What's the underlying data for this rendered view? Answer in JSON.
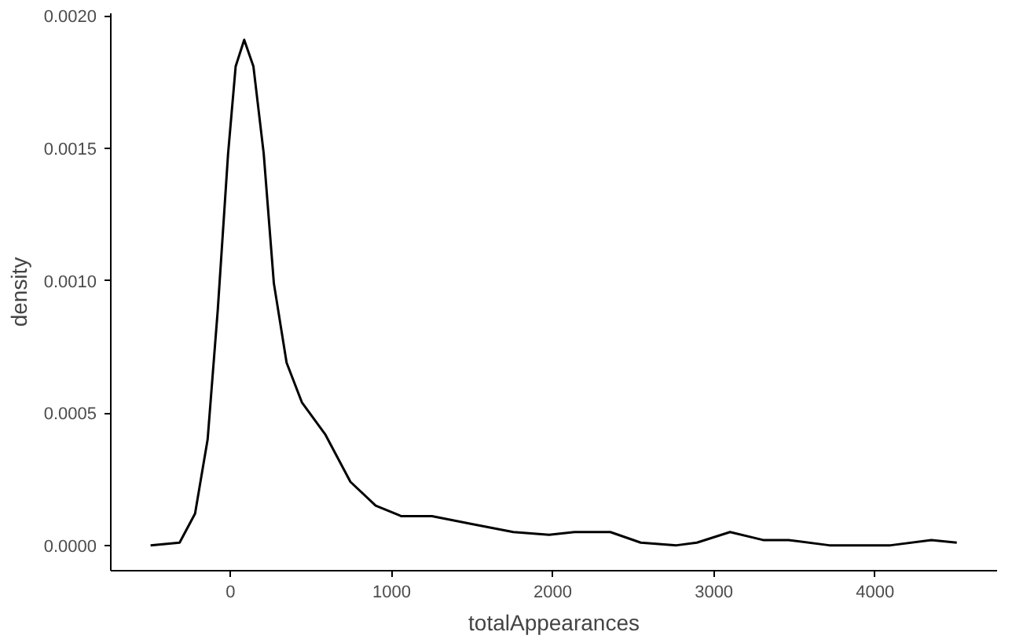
{
  "chart_data": {
    "type": "line",
    "xlabel": "totalAppearances",
    "ylabel": "density",
    "color": "#000000",
    "x": [
      -496,
      -316,
      -220,
      -142,
      -79,
      -15,
      32,
      85,
      142,
      206,
      269,
      348,
      443,
      587,
      744,
      901,
      1060,
      1250,
      1503,
      1755,
      1977,
      2135,
      2357,
      2546,
      2768,
      2894,
      3100,
      3305,
      3463,
      3716,
      4096,
      4349,
      4507
    ],
    "values": [
      0,
      1e-05,
      0.00012,
      0.0004,
      0.00089,
      0.00148,
      0.00181,
      0.00191,
      0.00181,
      0.00148,
      0.00099,
      0.00069,
      0.00054,
      0.00042,
      0.00024,
      0.00015,
      0.00011,
      0.00011,
      8e-05,
      5e-05,
      4e-05,
      5e-05,
      5e-05,
      1e-05,
      0,
      1e-05,
      5e-05,
      2e-05,
      2e-05,
      0,
      0,
      2e-05,
      1e-05
    ],
    "xlim": [
      -743,
      4757
    ],
    "ylim": [
      -9.6e-05,
      0.00201
    ],
    "xticks": [
      0,
      1000,
      2000,
      3000,
      4000
    ],
    "yticks": [
      {
        "value": 0,
        "label": "0.0000"
      },
      {
        "value": 0.0005,
        "label": "0.0005"
      },
      {
        "value": 0.001,
        "label": "0.0010"
      },
      {
        "value": 0.0015,
        "label": "0.0015"
      },
      {
        "value": 0.002,
        "label": "0.0020"
      }
    ],
    "grid": false,
    "marker": "none",
    "line_style": "solid"
  }
}
